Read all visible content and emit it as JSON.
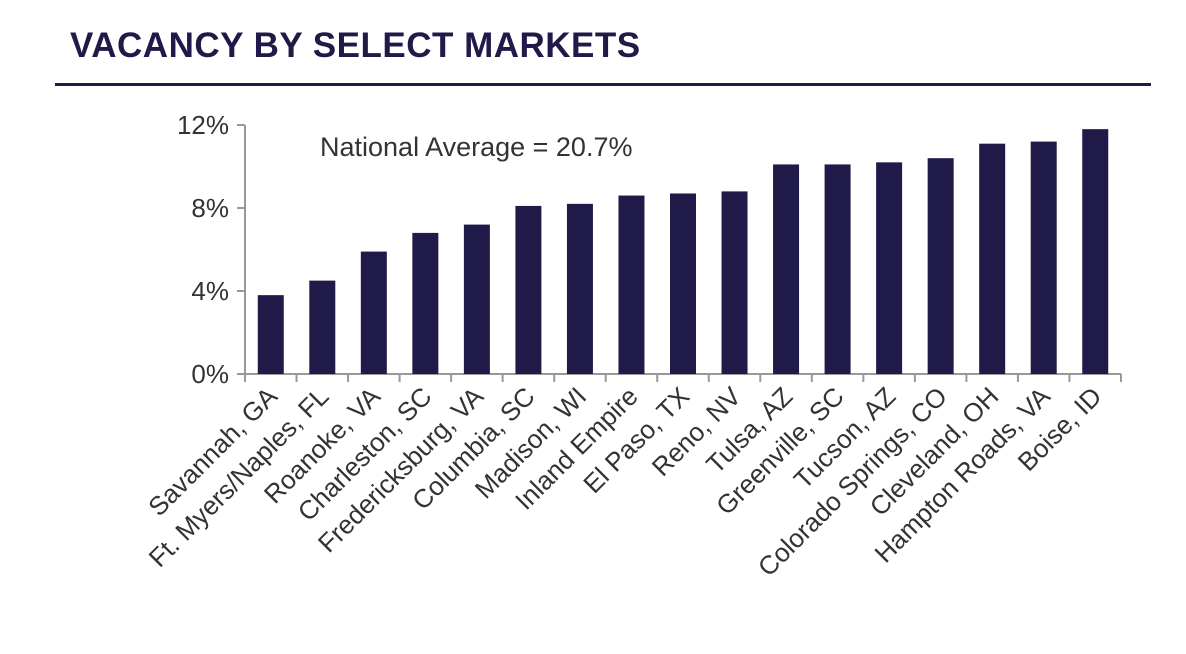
{
  "header": {
    "title": "VACANCY BY SELECT MARKETS"
  },
  "colors": {
    "title": "#1f1a48",
    "bar": "#1f1a48",
    "axis": "#999999",
    "text": "#333333"
  },
  "chart_data": {
    "type": "bar",
    "title": "VACANCY BY SELECT MARKETS",
    "xlabel": "",
    "ylabel": "",
    "ylim": [
      0,
      12
    ],
    "yticks": [
      0,
      4,
      8,
      12
    ],
    "ytick_labels": [
      "0%",
      "4%",
      "8%",
      "12%"
    ],
    "grid": false,
    "annotation": "National Average = 20.7%",
    "categories": [
      "Savannah, GA",
      "Ft. Myers/Naples, FL",
      "Roanoke, VA",
      "Charleston, SC",
      "Fredericksburg, VA",
      "Columbia, SC",
      "Madison, WI",
      "Inland Empire",
      "El Paso, TX",
      "Reno, NV",
      "Tulsa, AZ",
      "Greenville, SC",
      "Tucson, AZ",
      "Colorado Springs, CO",
      "Cleveland, OH",
      "Hampton Roads, VA",
      "Boise, ID"
    ],
    "values": [
      3.8,
      4.5,
      5.9,
      6.8,
      7.2,
      8.1,
      8.2,
      8.6,
      8.7,
      8.8,
      10.1,
      10.1,
      10.2,
      10.4,
      11.1,
      11.2,
      11.8
    ]
  }
}
